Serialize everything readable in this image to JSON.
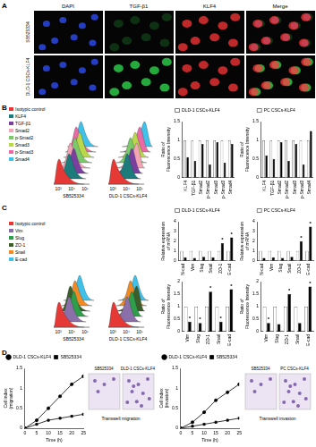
{
  "panel_labels": [
    "A",
    "B",
    "C",
    "D"
  ],
  "microscopy": {
    "columns": [
      "DAPI",
      "TGF-β1",
      "KLF4",
      "Merge"
    ],
    "rows": [
      "SB525334",
      "DLD-1 CSCs-KLF4"
    ]
  },
  "flow": [
    {
      "samples": [
        "SB525334",
        "DLD-1 CSCs-KLF4"
      ],
      "axis_labels": [
        "10³",
        "10⁴",
        "10⁵"
      ],
      "legend": [
        {
          "name": "Isotypic control",
          "color": "#e53935"
        },
        {
          "name": "KLF4",
          "color": "#1e7b7b"
        },
        {
          "name": "TGF-β1",
          "color": "#7b3fa0"
        },
        {
          "name": "Smad2",
          "color": "#f3a5b5"
        },
        {
          "name": "p-Smad2",
          "color": "#7cc96b"
        },
        {
          "name": "Smad3",
          "color": "#b9d94a"
        },
        {
          "name": "p-Smad3",
          "color": "#ea6aa6"
        },
        {
          "name": "Smad4",
          "color": "#3fc1ea"
        }
      ]
    },
    {
      "samples": [
        "SB525334",
        "DLD-1 CSCs-KLF4"
      ],
      "axis_labels": [
        "10³",
        "10⁴",
        "10⁵"
      ],
      "legend": [
        {
          "name": "Isotypic control",
          "color": "#e53935"
        },
        {
          "name": "Vim",
          "color": "#8a6fa8"
        },
        {
          "name": "Slug",
          "color": "#2e9e4a"
        },
        {
          "name": "ZO-1",
          "color": "#3b5e2b"
        },
        {
          "name": "Snail",
          "color": "#f08a24"
        },
        {
          "name": "E-cad",
          "color": "#3fc1ea"
        }
      ]
    }
  ],
  "transwell": [
    {
      "samples": [
        "SB525334",
        "DLD-1 CSCs-KLF4"
      ],
      "caption": "Transwell migration"
    },
    {
      "samples": [
        "SB525334",
        "PC CSCs-KLF4"
      ],
      "caption": "Transwell invasion"
    }
  ],
  "chart_data": [
    {
      "type": "bar",
      "ylabel": "Ratio of Fluorescence Intensity",
      "categories": [
        "KLF4",
        "TGF-β1",
        "Smad2",
        "p-Smad2",
        "Smad3",
        "p-Smad3",
        "Smad4"
      ],
      "series": [
        {
          "name": "DLD-1 CSCs-KLF4",
          "color": "#ffffff",
          "values": [
            1,
            1,
            1,
            1,
            1,
            1,
            1
          ]
        },
        {
          "color": "#000000",
          "values": [
            0.55,
            0.45,
            0.9,
            0.35,
            0.95,
            0.4,
            0.9
          ]
        }
      ],
      "ylim": [
        0,
        1.5
      ],
      "yticks": [
        0,
        0.5,
        1,
        1.5
      ],
      "grid": false,
      "legend": "top"
    },
    {
      "type": "bar",
      "ylabel": "Ratio of Fluorescence Intensity",
      "categories": [
        "KLF4",
        "TGF-β1",
        "Smad2",
        "p-Smad2",
        "Smad3",
        "p-Smad3",
        "Smad4"
      ],
      "series": [
        {
          "name": "PC CSCs-KLF4",
          "color": "#ffffff",
          "values": [
            1,
            1,
            1,
            1,
            1,
            1,
            1
          ]
        },
        {
          "color": "#000000",
          "values": [
            0.6,
            0.5,
            0.95,
            0.45,
            0.9,
            0.35,
            1.25
          ]
        }
      ],
      "ylim": [
        0,
        1.5
      ],
      "yticks": [
        0,
        0.5,
        1,
        1.5
      ],
      "grid": false,
      "legend": "top"
    },
    {
      "type": "bar",
      "ylabel": "Relative expression of mRNA",
      "categories": [
        "N-cad",
        "Vim",
        "Slug",
        "Snail",
        "ZO-1",
        "E-cad"
      ],
      "series": [
        {
          "name": "DLD-1 CSCs-KLF4",
          "color": "#ffffff",
          "values": [
            1,
            1,
            1,
            1,
            1,
            1
          ]
        },
        {
          "color": "#000000",
          "values": [
            0.35,
            0.3,
            0.4,
            0.35,
            1.8,
            2.4
          ]
        }
      ],
      "ylim": [
        0,
        4
      ],
      "yticks": [
        0,
        1,
        2,
        3,
        4
      ],
      "grid": false,
      "legend": "top",
      "annotations": [
        {
          "series": 1,
          "category": "ZO-1",
          "text": "*"
        },
        {
          "series": 1,
          "category": "E-cad",
          "text": "*"
        }
      ]
    },
    {
      "type": "bar",
      "ylabel": "Relative expression of mRNA",
      "categories": [
        "N-cad",
        "Vim",
        "Slug",
        "Snail",
        "ZO-1",
        "E-cad"
      ],
      "series": [
        {
          "name": "PC CSCs-KLF4",
          "color": "#ffffff",
          "values": [
            1,
            1,
            1,
            1,
            1,
            1
          ]
        },
        {
          "color": "#000000",
          "values": [
            0.3,
            0.35,
            0.3,
            0.4,
            2.0,
            3.5
          ]
        }
      ],
      "ylim": [
        0,
        4
      ],
      "yticks": [
        0,
        1,
        2,
        3,
        4
      ],
      "grid": false,
      "legend": "top",
      "annotations": [
        {
          "series": 1,
          "category": "ZO-1",
          "text": "*"
        },
        {
          "series": 1,
          "category": "E-cad",
          "text": "*"
        }
      ]
    },
    {
      "type": "bar",
      "ylabel": "Ratio of Fluorescence Intensity",
      "categories": [
        "Vim",
        "Slug",
        "ZO-1",
        "Snail",
        "E-cad"
      ],
      "series": [
        {
          "color": "#ffffff",
          "values": [
            1,
            1,
            1,
            1,
            1
          ]
        },
        {
          "color": "#000000",
          "values": [
            0.4,
            0.35,
            1.6,
            0.4,
            1.7
          ]
        }
      ],
      "ylim": [
        0,
        2
      ],
      "yticks": [
        0,
        0.5,
        1,
        1.5,
        2
      ],
      "grid": false,
      "annotations": [
        {
          "series": 1,
          "category": "Vim",
          "text": "*"
        },
        {
          "series": 1,
          "category": "Slug",
          "text": "*"
        },
        {
          "series": 1,
          "category": "ZO-1",
          "text": "*"
        },
        {
          "series": 1,
          "category": "Snail",
          "text": "*"
        },
        {
          "series": 1,
          "category": "E-cad",
          "text": "*"
        }
      ]
    },
    {
      "type": "bar",
      "ylabel": "Ratio of Fluorescence Intensity",
      "categories": [
        "Vim",
        "Slug",
        "ZO-1",
        "Snail",
        "E-cad"
      ],
      "series": [
        {
          "color": "#ffffff",
          "values": [
            1,
            1,
            1,
            1,
            1
          ]
        },
        {
          "color": "#000000",
          "values": [
            0.35,
            0.3,
            1.5,
            0.35,
            1.8
          ]
        }
      ],
      "ylim": [
        0,
        2
      ],
      "yticks": [
        0,
        0.5,
        1,
        1.5,
        2
      ],
      "grid": false,
      "annotations": [
        {
          "series": 1,
          "category": "Vim",
          "text": "*"
        },
        {
          "series": 1,
          "category": "ZO-1",
          "text": "*"
        },
        {
          "series": 1,
          "category": "E-cad",
          "text": "*"
        }
      ]
    },
    {
      "type": "line",
      "ylabel": "Cell index (migration)",
      "xlabel": "Time (h)",
      "x": [
        0,
        5,
        10,
        15,
        20,
        25
      ],
      "series": [
        {
          "name": "DLD-1 CSCs-KLF4",
          "color": "#000000",
          "marker": "circle",
          "line_style": "solid",
          "values": [
            0,
            0.2,
            0.5,
            0.8,
            1.1,
            1.3
          ]
        },
        {
          "name": "SB525334",
          "color": "#000000",
          "marker": "rect",
          "line_style": "solid",
          "values": [
            0,
            0.1,
            0.2,
            0.25,
            0.3,
            0.35
          ]
        }
      ],
      "xlim": [
        0,
        25
      ],
      "xticks": [
        0,
        5,
        10,
        15,
        20,
        25
      ],
      "ylim": [
        0,
        1.5
      ],
      "yticks": [
        0,
        0.5,
        1,
        1.5
      ],
      "grid": false,
      "legend": "top"
    },
    {
      "type": "line",
      "ylabel": "Cell index (invasion)",
      "xlabel": "Time (h)",
      "x": [
        0,
        5,
        10,
        15,
        20,
        25
      ],
      "series": [
        {
          "name": "DLD-1 CSCs-KLF4",
          "color": "#000000",
          "marker": "circle",
          "line_style": "solid",
          "values": [
            0,
            0.15,
            0.4,
            0.7,
            0.9,
            1.1
          ]
        },
        {
          "name": "SB525334",
          "color": "#000000",
          "marker": "rect",
          "line_style": "solid",
          "values": [
            0,
            0.05,
            0.1,
            0.15,
            0.2,
            0.25
          ]
        }
      ],
      "xlim": [
        0,
        25
      ],
      "xticks": [
        0,
        5,
        10,
        15,
        20,
        25
      ],
      "ylim": [
        0,
        1.5
      ],
      "yticks": [
        0,
        0.5,
        1,
        1.5
      ],
      "grid": false,
      "legend": "top"
    }
  ]
}
